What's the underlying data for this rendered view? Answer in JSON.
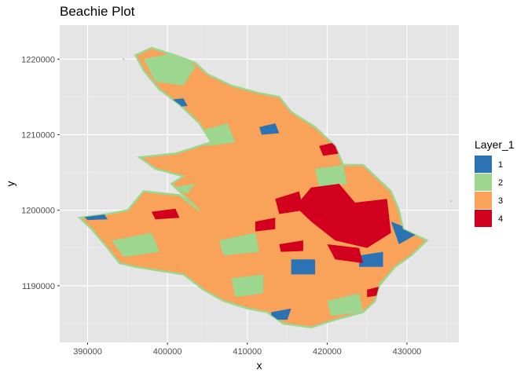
{
  "chart_data": {
    "type": "heatmap",
    "title": "Beachie Plot",
    "xlabel": "x",
    "ylabel": "y",
    "xlim": [
      386500,
      436500
    ],
    "ylim": [
      1182500,
      1224500
    ],
    "x_ticks": [
      390000,
      400000,
      410000,
      420000,
      430000
    ],
    "y_ticks": [
      1190000,
      1200000,
      1210000,
      1220000
    ],
    "x_tick_labels": [
      "390000",
      "400000",
      "410000",
      "420000",
      "430000"
    ],
    "y_tick_labels": [
      "1190000",
      "1200000",
      "1210000",
      "1220000"
    ],
    "grid": true,
    "panel_background": "#e5e5e5",
    "legend": {
      "title": "Layer_1",
      "placement": "right",
      "entries": [
        {
          "label": "1",
          "color": "#2b73b2"
        },
        {
          "label": "2",
          "color": "#9dd68f"
        },
        {
          "label": "3",
          "color": "#f9a259"
        },
        {
          "label": "4",
          "color": "#d2001e"
        }
      ]
    },
    "outline": [
      [
        389000,
        1199000
      ],
      [
        392500,
        1199500
      ],
      [
        395000,
        1200000
      ],
      [
        397000,
        1202500
      ],
      [
        401500,
        1202000
      ],
      [
        404000,
        1200000
      ],
      [
        400500,
        1203500
      ],
      [
        402000,
        1204500
      ],
      [
        398500,
        1205500
      ],
      [
        396500,
        1207000
      ],
      [
        401000,
        1207500
      ],
      [
        405500,
        1209000
      ],
      [
        404000,
        1211500
      ],
      [
        401500,
        1214000
      ],
      [
        399000,
        1216000
      ],
      [
        397000,
        1218500
      ],
      [
        396000,
        1220500
      ],
      [
        398000,
        1221500
      ],
      [
        401000,
        1220500
      ],
      [
        403500,
        1219500
      ],
      [
        405000,
        1218000
      ],
      [
        408000,
        1216500
      ],
      [
        411500,
        1215500
      ],
      [
        414000,
        1215000
      ],
      [
        415500,
        1213000
      ],
      [
        418500,
        1211000
      ],
      [
        421000,
        1208500
      ],
      [
        422000,
        1206000
      ],
      [
        424500,
        1206000
      ],
      [
        426500,
        1204000
      ],
      [
        428000,
        1202500
      ],
      [
        429000,
        1200000
      ],
      [
        429500,
        1197500
      ],
      [
        432500,
        1196000
      ],
      [
        430500,
        1194000
      ],
      [
        428500,
        1192500
      ],
      [
        426500,
        1190000
      ],
      [
        426000,
        1188000
      ],
      [
        424500,
        1186500
      ],
      [
        421000,
        1185500
      ],
      [
        418000,
        1184500
      ],
      [
        414500,
        1185000
      ],
      [
        412500,
        1186500
      ],
      [
        410000,
        1187000
      ],
      [
        407000,
        1188000
      ],
      [
        404500,
        1189500
      ],
      [
        402000,
        1191500
      ],
      [
        399000,
        1192000
      ],
      [
        396000,
        1192500
      ],
      [
        394000,
        1193000
      ],
      [
        392500,
        1195000
      ],
      [
        390500,
        1197500
      ]
    ],
    "patches": [
      {
        "layer": 1,
        "points": [
          [
            399000,
            1214500
          ],
          [
            402000,
            1214800
          ],
          [
            402500,
            1213800
          ],
          [
            399500,
            1213500
          ]
        ]
      },
      {
        "layer": 1,
        "points": [
          [
            411500,
            1211000
          ],
          [
            413500,
            1211500
          ],
          [
            414000,
            1210200
          ],
          [
            411800,
            1210000
          ]
        ]
      },
      {
        "layer": 1,
        "points": [
          [
            415500,
            1193500
          ],
          [
            418500,
            1193500
          ],
          [
            418500,
            1191500
          ],
          [
            415500,
            1191500
          ]
        ]
      },
      {
        "layer": 1,
        "points": [
          [
            424000,
            1194000
          ],
          [
            427000,
            1194500
          ],
          [
            427000,
            1192500
          ],
          [
            424000,
            1192500
          ]
        ]
      },
      {
        "layer": 1,
        "points": [
          [
            428000,
            1198500
          ],
          [
            431500,
            1197000
          ],
          [
            429000,
            1195500
          ]
        ]
      },
      {
        "layer": 1,
        "points": [
          [
            413000,
            1186500
          ],
          [
            415500,
            1187000
          ],
          [
            415000,
            1185500
          ],
          [
            413000,
            1185500
          ]
        ]
      },
      {
        "layer": 1,
        "points": [
          [
            389500,
            1199200
          ],
          [
            392000,
            1199600
          ],
          [
            392500,
            1198800
          ],
          [
            390000,
            1198700
          ]
        ]
      },
      {
        "layer": 2,
        "points": [
          [
            397000,
            1220000
          ],
          [
            401500,
            1221000
          ],
          [
            403500,
            1219000
          ],
          [
            402000,
            1216500
          ],
          [
            398500,
            1217000
          ]
        ]
      },
      {
        "layer": 2,
        "points": [
          [
            404000,
            1210500
          ],
          [
            407500,
            1211500
          ],
          [
            408500,
            1209000
          ],
          [
            405000,
            1208500
          ]
        ]
      },
      {
        "layer": 2,
        "points": [
          [
            393000,
            1196000
          ],
          [
            398000,
            1197000
          ],
          [
            399000,
            1194500
          ],
          [
            394500,
            1193800
          ]
        ]
      },
      {
        "layer": 2,
        "points": [
          [
            406500,
            1196000
          ],
          [
            411000,
            1197000
          ],
          [
            411500,
            1194500
          ],
          [
            407000,
            1194000
          ]
        ]
      },
      {
        "layer": 2,
        "points": [
          [
            418500,
            1205500
          ],
          [
            422000,
            1206000
          ],
          [
            422500,
            1203500
          ],
          [
            419000,
            1203000
          ]
        ]
      },
      {
        "layer": 2,
        "points": [
          [
            420000,
            1188000
          ],
          [
            424000,
            1189000
          ],
          [
            424500,
            1186500
          ],
          [
            420500,
            1186000
          ]
        ]
      },
      {
        "layer": 2,
        "points": [
          [
            408000,
            1191000
          ],
          [
            412000,
            1191500
          ],
          [
            412000,
            1189000
          ],
          [
            408500,
            1188500
          ]
        ]
      },
      {
        "layer": 2,
        "points": [
          [
            400500,
            1203000
          ],
          [
            403500,
            1203500
          ],
          [
            402500,
            1202200
          ]
        ]
      },
      {
        "layer": 4,
        "points": [
          [
            418000,
            1203000
          ],
          [
            421500,
            1203500
          ],
          [
            423500,
            1201000
          ],
          [
            427500,
            1201500
          ],
          [
            428000,
            1197000
          ],
          [
            425000,
            1195000
          ],
          [
            421000,
            1196000
          ],
          [
            418000,
            1198500
          ],
          [
            416000,
            1200500
          ]
        ]
      },
      {
        "layer": 4,
        "points": [
          [
            420000,
            1195500
          ],
          [
            424000,
            1195000
          ],
          [
            424500,
            1193000
          ],
          [
            421000,
            1193500
          ]
        ]
      },
      {
        "layer": 4,
        "points": [
          [
            413500,
            1201500
          ],
          [
            416500,
            1202500
          ],
          [
            417000,
            1200000
          ],
          [
            414000,
            1199500
          ]
        ]
      },
      {
        "layer": 4,
        "points": [
          [
            411000,
            1198500
          ],
          [
            413500,
            1199000
          ],
          [
            413500,
            1197500
          ],
          [
            411000,
            1197200
          ]
        ]
      },
      {
        "layer": 4,
        "points": [
          [
            398000,
            1199800
          ],
          [
            401000,
            1200200
          ],
          [
            401500,
            1199000
          ],
          [
            398500,
            1198800
          ]
        ]
      },
      {
        "layer": 4,
        "points": [
          [
            419000,
            1208500
          ],
          [
            421000,
            1209000
          ],
          [
            421500,
            1207500
          ],
          [
            419500,
            1207200
          ]
        ]
      },
      {
        "layer": 4,
        "points": [
          [
            425000,
            1189500
          ],
          [
            427000,
            1190000
          ],
          [
            427000,
            1188800
          ],
          [
            425000,
            1188500
          ]
        ]
      },
      {
        "layer": 4,
        "points": [
          [
            414000,
            1195500
          ],
          [
            417000,
            1196000
          ],
          [
            417000,
            1194600
          ],
          [
            414200,
            1194500
          ]
        ]
      }
    ],
    "specks": [
      {
        "layer": 2,
        "points": [
          [
            435500,
            1201200
          ]
        ]
      },
      {
        "layer": 2,
        "points": [
          [
            394500,
            1220000
          ]
        ]
      }
    ]
  }
}
